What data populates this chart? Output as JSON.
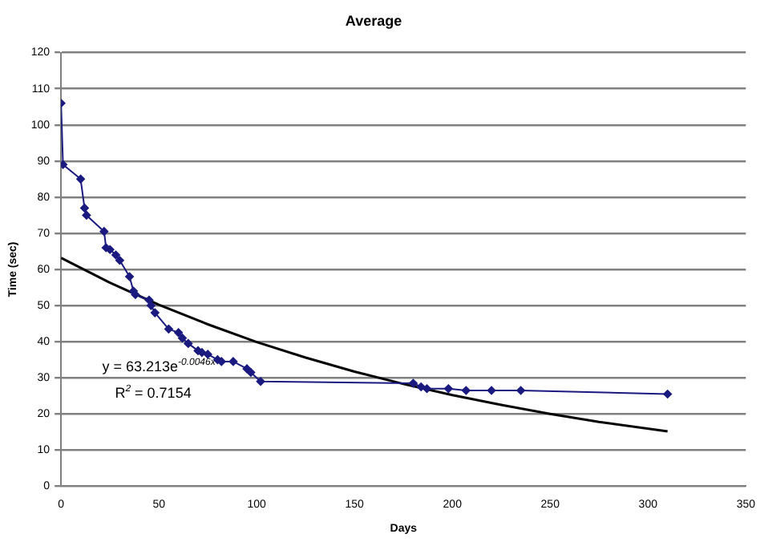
{
  "chart_data": {
    "type": "scatter",
    "title": "Average",
    "xlabel": "Days",
    "ylabel": "Time (sec)",
    "xlim": [
      0,
      350
    ],
    "xticks": [
      0,
      50,
      100,
      150,
      200,
      250,
      300,
      350
    ],
    "ylim": [
      0,
      120
    ],
    "yticks": [
      0,
      10,
      20,
      30,
      40,
      50,
      60,
      70,
      80,
      90,
      100,
      110,
      120
    ],
    "grid": "y",
    "legend": false,
    "series": [
      {
        "type": "line",
        "marker": "diamond",
        "color": "#1a1a80",
        "x": [
          0,
          1,
          10,
          12,
          13,
          22,
          23,
          25,
          28,
          30,
          35,
          37,
          38,
          45,
          46,
          48,
          55,
          60,
          62,
          65,
          70,
          72,
          75,
          80,
          82,
          88,
          95,
          97,
          102,
          180,
          184,
          187,
          198,
          207,
          220,
          235,
          310
        ],
        "values": [
          106,
          89,
          85,
          77,
          75,
          70.5,
          66,
          65.5,
          64,
          62.5,
          58,
          54,
          53,
          51.5,
          50,
          48,
          43.5,
          42.5,
          41,
          39.5,
          37.5,
          37,
          36.5,
          35,
          34.5,
          34.5,
          32.5,
          31.5,
          29,
          28.5,
          27.5,
          27,
          27,
          26.5,
          26.5,
          26.5,
          25.5
        ]
      },
      {
        "type": "line",
        "marker": "none",
        "color": "#000000",
        "x": [
          0,
          25,
          50,
          75,
          100,
          125,
          150,
          175,
          200,
          225,
          250,
          275,
          310
        ],
        "values": [
          63.2,
          56.3,
          50.2,
          44.8,
          39.9,
          35.6,
          31.7,
          28.3,
          25.2,
          22.5,
          20,
          17.8,
          15.2
        ]
      }
    ],
    "annotations": [
      "y = 63.213e$^{-0.0046x}$",
      "R$^{2}$ = 0.7154"
    ]
  }
}
